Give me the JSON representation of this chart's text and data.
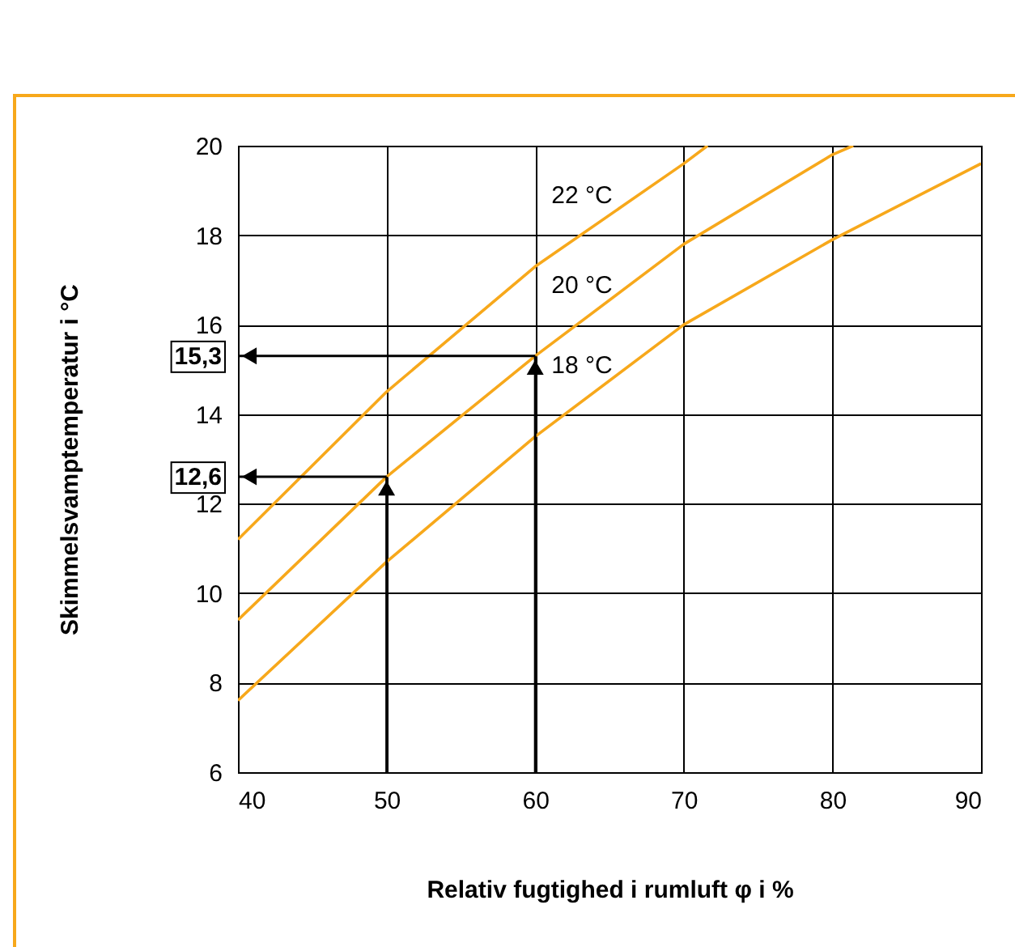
{
  "chart_data": {
    "type": "line",
    "xlabel": "Relativ fugtighed i rumluft φ i %",
    "ylabel": "Skimmelsvamptemperatur i °C",
    "xlim": [
      40,
      90
    ],
    "ylim": [
      6,
      20
    ],
    "xticks": [
      40,
      50,
      60,
      70,
      80,
      90
    ],
    "yticks": [
      6,
      8,
      10,
      12,
      14,
      16,
      18,
      20
    ],
    "grid": true,
    "series": [
      {
        "name": "22 °C",
        "color": "#f7a81b",
        "x": [
          40,
          50,
          60,
          70,
          71.6
        ],
        "values": [
          11.2,
          14.5,
          17.3,
          19.6,
          20
        ]
      },
      {
        "name": "20 °C",
        "color": "#f7a81b",
        "x": [
          40,
          50,
          60,
          70,
          80,
          81.4
        ],
        "values": [
          9.4,
          12.6,
          15.3,
          17.8,
          19.8,
          20
        ]
      },
      {
        "name": "18 °C",
        "color": "#f7a81b",
        "x": [
          40,
          50,
          60,
          70,
          80,
          90
        ],
        "values": [
          7.6,
          10.7,
          13.5,
          16.0,
          17.9,
          19.6
        ]
      }
    ],
    "annotations": [
      {
        "text": "15,3",
        "x": 60,
        "y": 15.3
      },
      {
        "text": "12,6",
        "x": 50,
        "y": 12.6
      }
    ]
  }
}
